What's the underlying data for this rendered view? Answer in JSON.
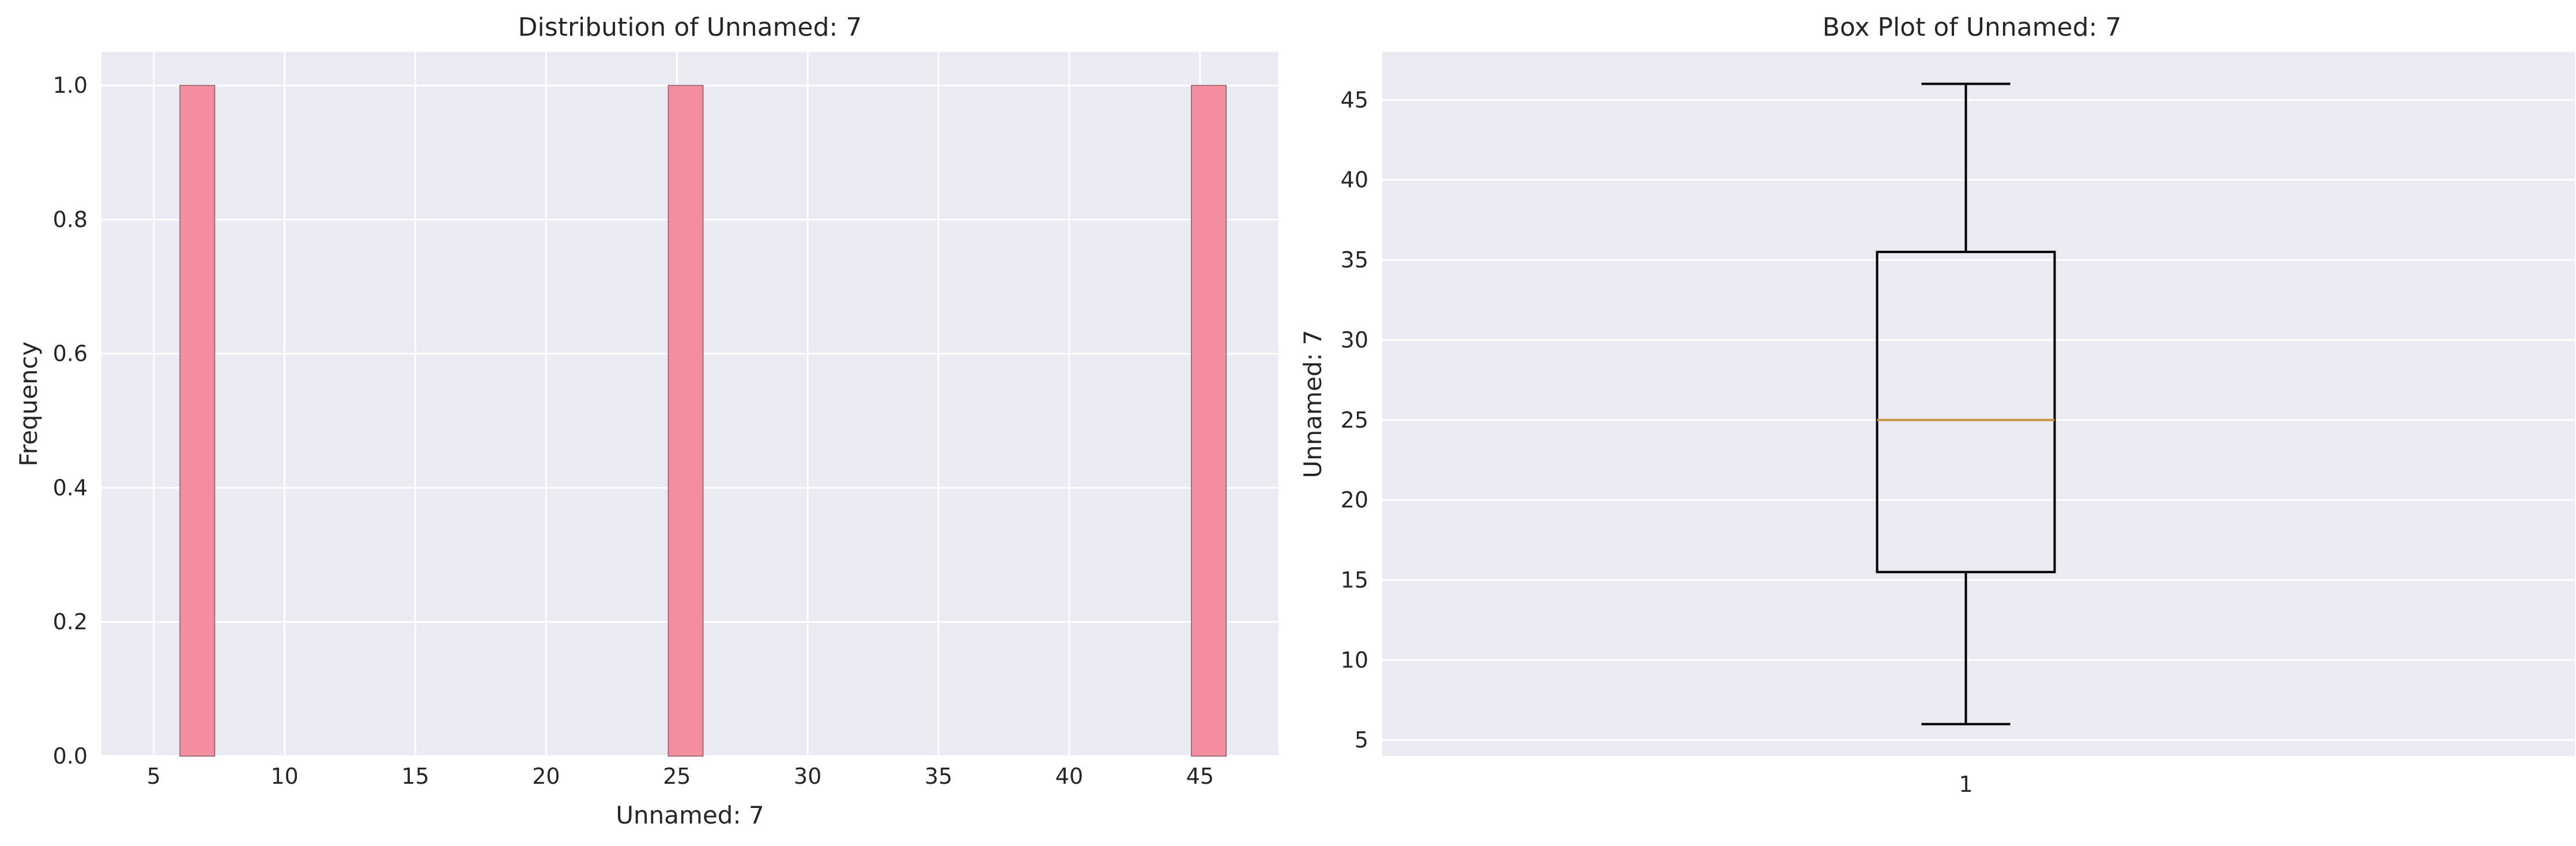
{
  "chart_data": [
    {
      "type": "bar",
      "title": "Distribution of Unnamed: 7",
      "xlabel": "Unnamed: 7",
      "ylabel": "Frequency",
      "xlim": [
        3.0,
        48.0
      ],
      "ylim": [
        0.0,
        1.05
      ],
      "xticks": [
        5,
        10,
        15,
        20,
        25,
        30,
        35,
        40,
        45
      ],
      "yticks": [
        0.0,
        0.2,
        0.4,
        0.6,
        0.8,
        1.0
      ],
      "bins": [
        {
          "x0": 6.0,
          "x1": 7.33,
          "count": 1
        },
        {
          "x0": 24.67,
          "x1": 26.0,
          "count": 1
        },
        {
          "x0": 44.67,
          "x1": 46.0,
          "count": 1
        }
      ],
      "grid": true,
      "bar_color": "#f28ea0"
    },
    {
      "type": "box",
      "title": "Box Plot of Unnamed: 7",
      "xlabel": "",
      "ylabel": "Unnamed: 7",
      "ylim": [
        4.0,
        48.0
      ],
      "yticks": [
        5,
        10,
        15,
        20,
        25,
        30,
        35,
        40,
        45
      ],
      "categories": [
        "1"
      ],
      "box": {
        "whisker_low": 6,
        "q1": 15.5,
        "median": 25,
        "q3": 35.5,
        "whisker_high": 46
      },
      "grid": true,
      "median_color": "#c8963e"
    }
  ],
  "colors": {
    "plot_bg": "#eaeaf2",
    "grid": "#ffffff",
    "text": "#262626"
  }
}
